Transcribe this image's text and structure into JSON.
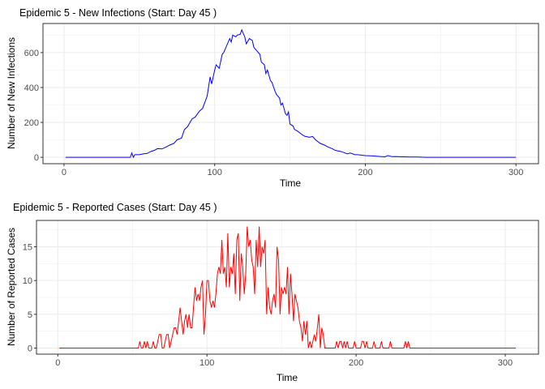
{
  "chart_data": [
    {
      "type": "line",
      "title": "Epidemic 5 - New Infections (Start: Day 45 )",
      "xlabel": "Time",
      "ylabel": "Number of New Infections",
      "xlim": [
        1,
        300
      ],
      "ylim": [
        0,
        730
      ],
      "xticks": [
        0,
        100,
        200,
        300
      ],
      "yticks": [
        0,
        200,
        400,
        600
      ],
      "grid": true,
      "color": "#0000ff",
      "x": [
        1,
        44,
        45,
        46,
        47,
        50,
        53,
        55,
        58,
        60,
        62,
        65,
        68,
        70,
        73,
        75,
        78,
        80,
        82,
        85,
        87,
        90,
        92,
        95,
        97,
        98,
        100,
        101,
        103,
        105,
        106,
        108,
        110,
        111,
        112,
        114,
        115,
        117,
        118,
        120,
        121,
        123,
        125,
        126,
        128,
        130,
        131,
        133,
        134,
        135,
        137,
        138,
        140,
        141,
        143,
        144,
        145,
        147,
        148,
        149,
        150,
        152,
        153,
        155,
        158,
        160,
        163,
        165,
        167,
        170,
        173,
        175,
        178,
        180,
        183,
        185,
        188,
        190,
        193,
        195,
        198,
        200,
        205,
        210,
        213,
        215,
        218,
        220,
        225,
        230,
        235,
        240,
        245,
        300
      ],
      "y": [
        0,
        0,
        25,
        0,
        15,
        15,
        20,
        22,
        35,
        40,
        50,
        48,
        60,
        70,
        80,
        100,
        110,
        160,
        175,
        220,
        230,
        265,
        280,
        350,
        460,
        420,
        500,
        530,
        510,
        590,
        600,
        640,
        680,
        660,
        700,
        690,
        700,
        705,
        730,
        690,
        650,
        680,
        670,
        630,
        610,
        590,
        545,
        530,
        480,
        500,
        440,
        430,
        380,
        360,
        340,
        300,
        310,
        250,
        240,
        260,
        190,
        180,
        160,
        150,
        130,
        120,
        115,
        120,
        100,
        80,
        70,
        60,
        50,
        40,
        35,
        30,
        20,
        25,
        15,
        15,
        12,
        10,
        8,
        5,
        3,
        10,
        4,
        5,
        3,
        2,
        2,
        0,
        0,
        0
      ]
    },
    {
      "type": "line",
      "title": "Epidemic 5 - Reported Cases (Start: Day 45 )",
      "xlabel": "Time",
      "ylabel": "Number of Reported Cases",
      "xlim": [
        1,
        307
      ],
      "ylim": [
        0,
        18
      ],
      "xticks": [
        0,
        100,
        200,
        300
      ],
      "yticks": [
        0,
        5,
        10,
        15
      ],
      "grid": true,
      "color": "#ff0000",
      "x": [
        1,
        54,
        55,
        56,
        57,
        58,
        59,
        60,
        61,
        63,
        64,
        65,
        66,
        67,
        68,
        69,
        70,
        71,
        72,
        73,
        74,
        75,
        76,
        77,
        78,
        79,
        80,
        81,
        82,
        83,
        84,
        85,
        86,
        87,
        88,
        89,
        90,
        91,
        92,
        93,
        94,
        95,
        96,
        97,
        98,
        99,
        100,
        101,
        102,
        103,
        104,
        105,
        106,
        107,
        108,
        109,
        110,
        111,
        112,
        113,
        114,
        115,
        116,
        117,
        118,
        119,
        120,
        121,
        122,
        123,
        124,
        125,
        126,
        127,
        128,
        129,
        130,
        131,
        132,
        133,
        134,
        135,
        136,
        137,
        138,
        139,
        140,
        141,
        142,
        143,
        144,
        145,
        146,
        147,
        148,
        149,
        150,
        151,
        152,
        153,
        154,
        155,
        156,
        157,
        158,
        159,
        160,
        161,
        162,
        163,
        164,
        165,
        166,
        167,
        168,
        169,
        170,
        171,
        172,
        173,
        174,
        175,
        176,
        177,
        178,
        179,
        186,
        187,
        188,
        189,
        190,
        191,
        192,
        193,
        194,
        195,
        198,
        199,
        200,
        203,
        204,
        205,
        206,
        207,
        208,
        211,
        212,
        213,
        216,
        217,
        218,
        222,
        223,
        224,
        232,
        233,
        234,
        235,
        236,
        307
      ],
      "y": [
        0,
        0,
        1,
        0,
        0,
        1,
        0,
        1,
        0,
        0,
        1,
        0,
        0,
        1,
        2,
        2,
        0,
        0,
        1,
        2,
        2,
        0,
        1,
        2,
        3,
        3,
        2,
        4,
        6,
        4,
        2,
        4,
        5,
        3,
        5,
        3,
        3,
        6,
        9,
        7,
        8,
        7,
        9,
        10,
        2,
        5,
        10,
        10,
        7,
        6,
        7,
        6,
        8,
        11,
        12,
        11,
        16,
        11,
        12,
        9,
        17,
        9,
        12,
        11,
        14,
        8,
        16,
        17,
        7,
        14,
        12,
        8,
        11,
        18,
        15,
        16,
        13,
        12,
        8,
        16,
        12,
        18,
        12,
        15,
        14,
        16,
        5,
        9,
        6,
        5,
        7,
        8,
        6,
        15,
        13,
        5,
        9,
        8,
        9,
        8,
        12,
        5,
        11,
        8,
        4,
        8,
        7,
        6,
        4,
        3,
        1,
        4,
        2,
        4,
        0,
        1,
        0,
        1,
        2,
        1,
        3,
        5,
        0,
        3,
        2,
        0,
        0,
        1,
        0,
        1,
        1,
        0,
        1,
        0,
        1,
        0,
        0,
        1,
        0,
        0,
        1,
        1,
        0,
        1,
        0,
        0,
        1,
        0,
        0,
        1,
        0,
        0,
        1,
        0,
        0,
        1,
        0,
        1,
        0,
        0
      ]
    }
  ]
}
